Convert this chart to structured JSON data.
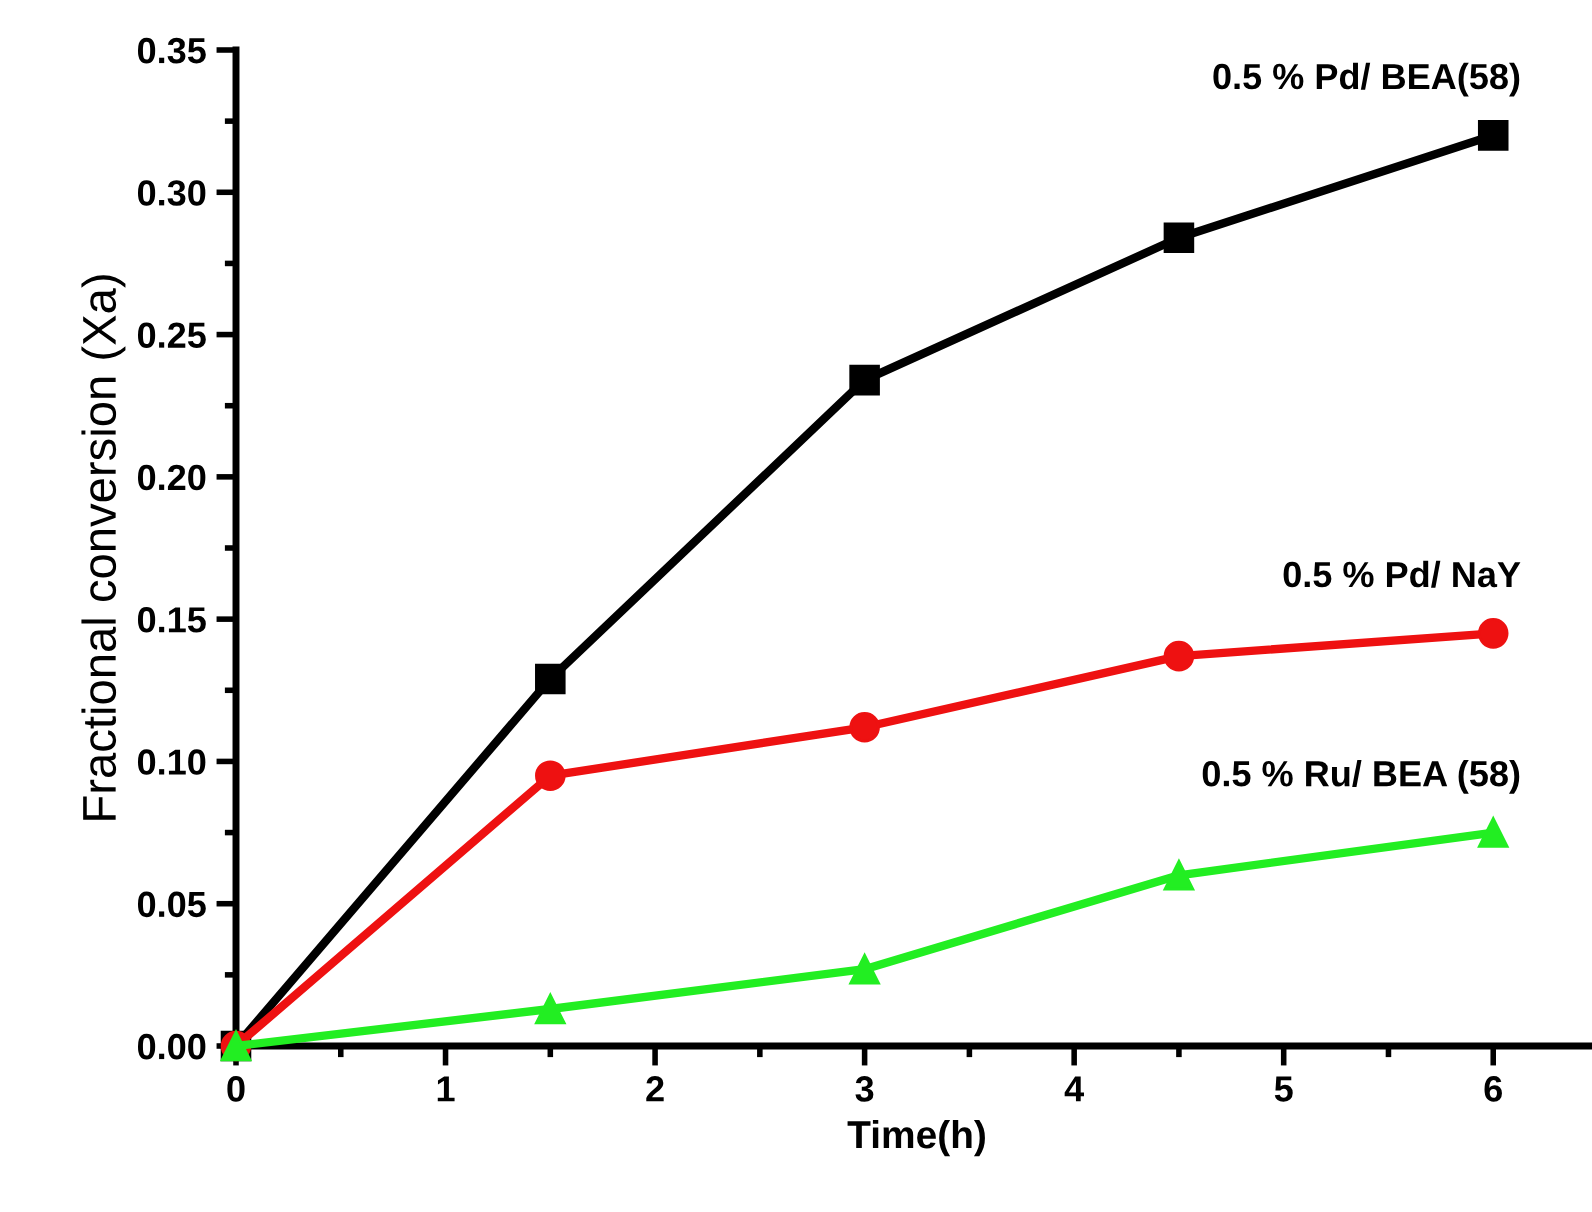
{
  "chart_data": {
    "type": "line",
    "xlabel": "Time(h)",
    "ylabel": "Fractional conversion (Xa)",
    "x": [
      0,
      1.5,
      3,
      4.5,
      6
    ],
    "series": [
      {
        "name": "0.5 % Pd/ BEA(58)",
        "color": "#000000",
        "marker": "square",
        "values": [
          0,
          0.129,
          0.234,
          0.284,
          0.32
        ]
      },
      {
        "name": "0.5 % Pd/ NaY",
        "color": "#ee1111",
        "marker": "circle",
        "values": [
          0,
          0.095,
          0.112,
          0.137,
          0.145
        ]
      },
      {
        "name": "0.5 % Ru/ BEA (58)",
        "color": "#22ee22",
        "marker": "triangle",
        "values": [
          0,
          0.013,
          0.027,
          0.06,
          0.075
        ]
      }
    ],
    "xlim": [
      0,
      6.5
    ],
    "ylim": [
      0,
      0.35
    ],
    "xticks": [
      0,
      1,
      2,
      3,
      4,
      5,
      6
    ],
    "yticks": [
      {
        "value": 0,
        "label": "0.00"
      },
      {
        "value": 0.05,
        "label": "0.05"
      },
      {
        "value": 0.1,
        "label": "0.10"
      },
      {
        "value": 0.15,
        "label": "0.15"
      },
      {
        "value": 0.2,
        "label": "0.20"
      },
      {
        "value": 0.25,
        "label": "0.25"
      },
      {
        "value": 0.3,
        "label": "0.30"
      },
      {
        "value": 0.35,
        "label": "0.35"
      }
    ],
    "grid": false,
    "legend": false,
    "line_style": "solid"
  }
}
